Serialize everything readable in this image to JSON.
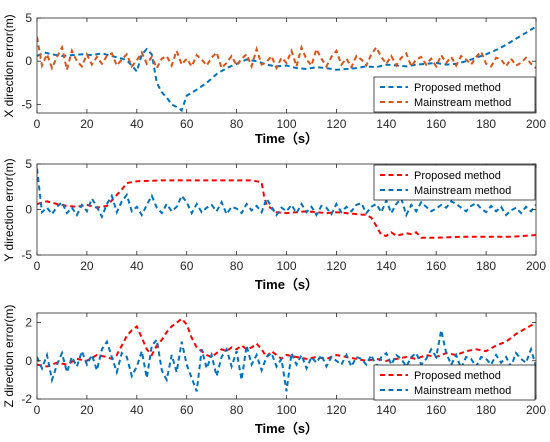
{
  "colors": {
    "blue": "#0072BD",
    "orange": "#D95319",
    "red": "#FF0000",
    "axis": "#262626"
  },
  "chart_data": [
    {
      "type": "line",
      "xlabel": "Time（s）",
      "ylabel": "X direction error(m)",
      "xlim": [
        0,
        200
      ],
      "ylim": [
        -6,
        5
      ],
      "xticks": [
        0,
        20,
        40,
        60,
        80,
        100,
        120,
        140,
        160,
        180,
        200
      ],
      "yticks": [
        -5,
        0,
        5
      ],
      "legend_position": "bottom-right",
      "grid": false,
      "series": [
        {
          "name": "Proposed method",
          "color": "#0072BD",
          "x": [
            0,
            3,
            6,
            10,
            14,
            18,
            22,
            26,
            30,
            34,
            36,
            38,
            40,
            42,
            44,
            46,
            48,
            50,
            52,
            54,
            56,
            58,
            60,
            64,
            68,
            72,
            76,
            80,
            84,
            88,
            92,
            96,
            100,
            104,
            108,
            112,
            116,
            120,
            124,
            128,
            132,
            136,
            140,
            144,
            148,
            152,
            156,
            160,
            164,
            168,
            172,
            176,
            180,
            184,
            188,
            192,
            196,
            200
          ],
          "y": [
            0.6,
            1.0,
            0.8,
            0.6,
            0.7,
            0.8,
            0.7,
            0.9,
            0.6,
            0.3,
            0.1,
            -0.5,
            -1.2,
            0.8,
            1.4,
            0.8,
            -2.5,
            -3.6,
            -4.2,
            -5.0,
            -5.3,
            -5.7,
            -4.0,
            -3.3,
            -2.5,
            -1.5,
            -0.8,
            -0.3,
            0.2,
            0,
            -0.4,
            -0.6,
            -0.5,
            -0.8,
            -0.9,
            -0.7,
            -0.8,
            -1.0,
            -0.9,
            -0.8,
            -0.6,
            -0.7,
            -0.4,
            -0.5,
            -0.6,
            -0.4,
            -0.3,
            -0.2,
            -0.4,
            -0.3,
            0,
            0.4,
            0.8,
            1.3,
            1.9,
            2.6,
            3.3,
            4.0
          ]
        },
        {
          "name": "Mainstream method",
          "color": "#D95319",
          "x": [
            0,
            2,
            4,
            6,
            8,
            10,
            12,
            14,
            16,
            18,
            20,
            22,
            24,
            26,
            28,
            30,
            32,
            34,
            36,
            38,
            40,
            42,
            44,
            46,
            48,
            50,
            52,
            54,
            56,
            58,
            60,
            62,
            64,
            66,
            68,
            70,
            72,
            74,
            76,
            78,
            80,
            82,
            84,
            86,
            88,
            90,
            92,
            94,
            96,
            98,
            100,
            102,
            104,
            106,
            108,
            110,
            112,
            114,
            116,
            118,
            120,
            122,
            124,
            126,
            128,
            130,
            132,
            134,
            136,
            138,
            140,
            142,
            144,
            146,
            148,
            150,
            152,
            154,
            156,
            158,
            160,
            162,
            164,
            166,
            168,
            170,
            172,
            174,
            176,
            178,
            180,
            182,
            184,
            186,
            188,
            190,
            192,
            194,
            196,
            198,
            200
          ],
          "y": [
            2.8,
            -0.5,
            0.8,
            -0.8,
            0.5,
            1.6,
            -1.0,
            1.2,
            0,
            -0.6,
            0.8,
            -0.4,
            0.5,
            -0.3,
            0.6,
            0.9,
            -0.5,
            0.2,
            0.8,
            -0.6,
            0.1,
            1.0,
            -0.3,
            0.5,
            -0.8,
            0.3,
            0.6,
            -0.5,
            1.2,
            -0.4,
            0.3,
            -0.6,
            0.7,
            0.2,
            -0.5,
            0.4,
            1.0,
            -0.8,
            -0.2,
            0.6,
            -0.5,
            0.3,
            0.8,
            -0.6,
            1.4,
            -0.4,
            -0.1,
            0.6,
            -0.8,
            0.4,
            -0.2,
            1.2,
            -0.6,
            1.6,
            0.2,
            -0.5,
            1.4,
            0.3,
            -0.6,
            0.5,
            1.2,
            -0.4,
            0.3,
            -0.7,
            0.6,
            0.2,
            -0.5,
            0.8,
            1.6,
            0.5,
            -0.3,
            0.6,
            -0.5,
            0.4,
            0.9,
            -0.6,
            0.2,
            0.5,
            -0.4,
            0.3,
            -0.6,
            0.7,
            -0.2,
            0.5,
            -0.5,
            0.6,
            0.2,
            -0.4,
            0.5,
            1.1,
            -0.3,
            -0.6,
            0.4,
            0.2,
            -0.6,
            0.3,
            -0.5,
            -0.2,
            0.4,
            -0.3,
            -0.8
          ]
        }
      ]
    },
    {
      "type": "line",
      "xlabel": "Time（s）",
      "ylabel": "Y direction error(m)",
      "xlim": [
        0,
        200
      ],
      "ylim": [
        -5,
        5
      ],
      "xticks": [
        0,
        20,
        40,
        60,
        80,
        100,
        120,
        140,
        160,
        180,
        200
      ],
      "yticks": [
        -5,
        0,
        5
      ],
      "legend_position": "top-right",
      "grid": false,
      "series": [
        {
          "name": "Proposed method",
          "color": "#FF0000",
          "x": [
            0,
            4,
            8,
            12,
            16,
            20,
            24,
            28,
            30,
            32,
            34,
            36,
            40,
            50,
            60,
            70,
            80,
            86,
            88,
            90,
            91,
            92,
            94,
            96,
            100,
            104,
            108,
            112,
            116,
            120,
            124,
            128,
            132,
            134,
            136,
            138,
            140,
            142,
            144,
            148,
            150,
            152,
            154,
            160,
            170,
            180,
            190,
            200
          ],
          "y": [
            0.6,
            0.9,
            0.6,
            0.4,
            0.3,
            0.5,
            0.2,
            0.4,
            1.0,
            1.6,
            2.2,
            2.9,
            3.1,
            3.2,
            3.2,
            3.2,
            3.2,
            3.2,
            3.1,
            3.0,
            1.5,
            0.5,
            0.1,
            -0.3,
            -0.4,
            -0.3,
            -0.2,
            -0.3,
            -0.4,
            -0.3,
            -0.4,
            -0.5,
            -0.6,
            -0.9,
            -1.8,
            -2.8,
            -2.9,
            -2.5,
            -2.9,
            -2.6,
            -2.7,
            -2.5,
            -3.1,
            -3.1,
            -3.0,
            -3.0,
            -3.0,
            -2.8
          ]
        },
        {
          "name": "Mainstream method",
          "color": "#0072BD",
          "x": [
            0,
            2,
            4,
            6,
            8,
            10,
            12,
            14,
            16,
            18,
            20,
            22,
            24,
            26,
            28,
            30,
            32,
            34,
            36,
            38,
            40,
            42,
            44,
            46,
            48,
            50,
            52,
            54,
            56,
            58,
            60,
            62,
            64,
            66,
            68,
            70,
            72,
            74,
            76,
            78,
            80,
            82,
            84,
            86,
            88,
            90,
            92,
            94,
            96,
            98,
            100,
            102,
            104,
            106,
            108,
            110,
            112,
            114,
            116,
            118,
            120,
            122,
            124,
            126,
            128,
            130,
            132,
            134,
            136,
            138,
            140,
            142,
            144,
            146,
            148,
            150,
            152,
            154,
            156,
            158,
            160,
            162,
            164,
            166,
            168,
            170,
            172,
            174,
            176,
            178,
            180,
            182,
            184,
            186,
            188,
            190,
            192,
            194,
            196,
            198,
            200
          ],
          "y": [
            4.5,
            -0.3,
            0.2,
            -0.5,
            0.3,
            0.8,
            -0.4,
            0.2,
            -0.6,
            0.5,
            -0.2,
            1.2,
            0.3,
            -0.8,
            0.6,
            1.5,
            -0.3,
            0.9,
            1.6,
            -0.2,
            0.3,
            -0.6,
            0.5,
            1.5,
            0.2,
            -0.4,
            0.6,
            -0.2,
            0.3,
            1.5,
            0.8,
            -0.4,
            0.6,
            -0.3,
            0.2,
            0.5,
            -0.2,
            0.8,
            -0.5,
            0.3,
            0.1,
            -0.4,
            0.6,
            -0.1,
            0.4,
            -0.3,
            1.2,
            0.3,
            -0.6,
            0.2,
            -0.2,
            0.5,
            -0.4,
            0.6,
            -0.3,
            0.3,
            -0.6,
            0.4,
            0.2,
            -0.5,
            0.6,
            -0.3,
            0.3,
            -0.2,
            0.5,
            0.7,
            -0.4,
            0.3,
            0.6,
            -0.3,
            1.0,
            -0.4,
            0.6,
            1.2,
            -0.6,
            0.5,
            -0.2,
            0.8,
            0.3,
            -0.2,
            0.1,
            0.5,
            0.2,
            0.9,
            0.6,
            0.2,
            -0.2,
            0.4,
            0.7,
            0.1,
            -0.3,
            0.4,
            -0.2,
            0.3,
            -0.6,
            -0.1,
            0.2,
            -0.4,
            0.3,
            -0.2,
            0.5
          ]
        }
      ]
    },
    {
      "type": "line",
      "xlabel": "Time（s）",
      "ylabel": "Z direction error(m)",
      "xlim": [
        0,
        200
      ],
      "ylim": [
        -2,
        2.5
      ],
      "xticks": [
        0,
        20,
        40,
        60,
        80,
        100,
        120,
        140,
        160,
        180,
        200
      ],
      "yticks": [
        -2,
        0,
        2
      ],
      "legend_position": "bottom-right",
      "grid": false,
      "series": [
        {
          "name": "Proposed method",
          "color": "#FF0000",
          "x": [
            0,
            4,
            8,
            12,
            16,
            20,
            24,
            28,
            30,
            32,
            34,
            36,
            38,
            40,
            42,
            44,
            46,
            48,
            50,
            52,
            54,
            56,
            58,
            60,
            62,
            64,
            66,
            68,
            70,
            72,
            74,
            76,
            78,
            80,
            82,
            84,
            86,
            88,
            90,
            92,
            94,
            96,
            98,
            100,
            104,
            108,
            112,
            116,
            120,
            124,
            128,
            132,
            136,
            140,
            144,
            148,
            152,
            156,
            160,
            164,
            168,
            172,
            176,
            180,
            184,
            188,
            192,
            196,
            200
          ],
          "y": [
            -0.2,
            -0.3,
            -0.1,
            -0.2,
            0.1,
            0,
            0.3,
            0.2,
            0.1,
            0.3,
            0.8,
            1.3,
            1.6,
            1.8,
            1.2,
            0.6,
            0.3,
            0.8,
            1.1,
            1.5,
            1.8,
            2.0,
            2.2,
            1.9,
            1.2,
            0.7,
            0.5,
            0.3,
            0.2,
            0.4,
            0.6,
            0.5,
            0.7,
            0.6,
            0.8,
            0.6,
            0.7,
            0.9,
            0.6,
            0.2,
            0.5,
            0.3,
            0.1,
            0.3,
            0.2,
            0.1,
            0.2,
            0.1,
            0.3,
            0.2,
            0.1,
            0,
            0.1,
            0,
            0.1,
            0.2,
            0.1,
            0.3,
            0.2,
            0.4,
            0.3,
            0.5,
            0.6,
            0.5,
            0.8,
            1.0,
            1.4,
            1.7,
            2.0
          ]
        },
        {
          "name": "Mainstream method",
          "color": "#0072BD",
          "x": [
            0,
            2,
            4,
            6,
            8,
            10,
            12,
            14,
            16,
            18,
            20,
            22,
            24,
            26,
            28,
            30,
            32,
            34,
            36,
            38,
            40,
            42,
            44,
            46,
            48,
            50,
            52,
            54,
            56,
            58,
            60,
            62,
            64,
            66,
            68,
            70,
            72,
            74,
            76,
            78,
            80,
            82,
            84,
            86,
            88,
            90,
            92,
            94,
            96,
            98,
            100,
            102,
            104,
            106,
            108,
            110,
            112,
            114,
            116,
            118,
            120,
            122,
            124,
            126,
            128,
            130,
            132,
            134,
            136,
            138,
            140,
            142,
            144,
            146,
            148,
            150,
            152,
            154,
            156,
            158,
            160,
            162,
            164,
            166,
            168,
            170,
            172,
            174,
            176,
            178,
            180,
            182,
            184,
            186,
            188,
            190,
            192,
            194,
            196,
            198,
            200
          ],
          "y": [
            0.2,
            -0.4,
            0.3,
            -1.0,
            -0.2,
            0.4,
            -0.6,
            0.2,
            -0.3,
            0.5,
            -0.2,
            0.3,
            -0.5,
            0.6,
            1.0,
            0.2,
            -0.6,
            0.4,
            0.2,
            -0.8,
            -0.3,
            0.5,
            -0.9,
            0.8,
            1.1,
            -0.5,
            -1.0,
            0.3,
            -0.6,
            1.0,
            -0.2,
            -0.9,
            -1.6,
            0.6,
            -0.4,
            0.3,
            -0.8,
            0.2,
            0.6,
            -0.3,
            0.5,
            -1.0,
            0.8,
            -0.2,
            0.3,
            -0.5,
            0.2,
            0.4,
            -0.3,
            0.1,
            -1.6,
            0.4,
            -0.2,
            0.3,
            -0.4,
            0.2,
            -0.1,
            0.3,
            -0.3,
            0.2,
            0,
            -0.2,
            0.3,
            -0.3,
            0.2,
            0.1,
            -0.2,
            0.3,
            -0.3,
            0.2,
            0.4,
            -0.2,
            0.3,
            0.1,
            -0.3,
            0.2,
            0.4,
            -0.2,
            0.1,
            0.6,
            0.2,
            1.6,
            0.4,
            -0.2,
            0.3,
            -0.4,
            0.2,
            0.1,
            -0.3,
            0.2,
            0.1,
            -0.2,
            0.3,
            -0.1,
            0.2,
            -0.3,
            0.4,
            0.1,
            -0.1,
            0.6,
            -0.3
          ]
        }
      ]
    }
  ]
}
